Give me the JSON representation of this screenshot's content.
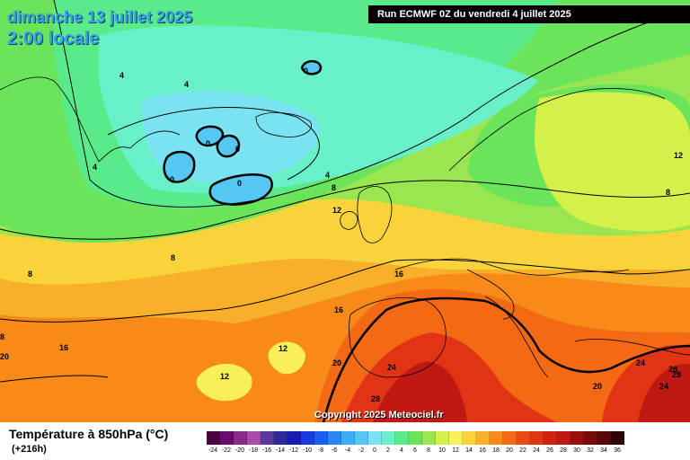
{
  "header": {
    "date": "dimanche 13 juillet 2025",
    "time": "2:00 locale",
    "run": "Run ECMWF 0Z du vendredi 4 juillet 2025"
  },
  "footer": {
    "title": "Température à 850hPa (°C)",
    "lead": "(+216h)",
    "copyright": "Copyright 2025 Meteociel.fr"
  },
  "legend": {
    "labels": [
      "-24",
      "-22",
      "-20",
      "-18",
      "-16",
      "-14",
      "-12",
      "-10",
      "-8",
      "-6",
      "-4",
      "-2",
      "0",
      "2",
      "4",
      "6",
      "8",
      "10",
      "12",
      "14",
      "16",
      "18",
      "20",
      "22",
      "24",
      "26",
      "28",
      "30",
      "32",
      "34",
      "36"
    ],
    "colors": [
      "#4c0040",
      "#6a0a6a",
      "#8a2a8a",
      "#a84ca8",
      "#5a3a9a",
      "#2a2a9a",
      "#1a1ab4",
      "#1a3ae0",
      "#1a5ef0",
      "#2a86f2",
      "#3cacf4",
      "#54c8f2",
      "#7ae2f0",
      "#6af0c8",
      "#5aea8a",
      "#6ae45a",
      "#9ae650",
      "#d6f04a",
      "#f8f05a",
      "#f8d43a",
      "#f8b02a",
      "#f88a1a",
      "#f46a14",
      "#ec4a14",
      "#e03414",
      "#d02212",
      "#c01812",
      "#9c0e0e",
      "#7a0a0a",
      "#580808",
      "#300404"
    ]
  },
  "contours": [
    {
      "name": "label-4-greenland",
      "text": "4"
    },
    {
      "name": "label-4-greenland-b",
      "text": "4"
    },
    {
      "name": "label-4-east-greenland",
      "text": "4"
    },
    {
      "name": "label-0-iceland-n",
      "text": "0"
    },
    {
      "name": "label-0-cell-a",
      "text": "0"
    },
    {
      "name": "label-0-cell-b",
      "text": "0"
    },
    {
      "name": "label-0-cell-c",
      "text": "0"
    },
    {
      "name": "label-0-cell-d",
      "text": "0"
    },
    {
      "name": "label-4-atlantic",
      "text": "4"
    },
    {
      "name": "label-8-atlantic",
      "text": "8"
    },
    {
      "name": "label-12-atlantic",
      "text": "12"
    },
    {
      "name": "label-8-west",
      "text": "8"
    },
    {
      "name": "label-8-south",
      "text": "8"
    },
    {
      "name": "label-16-atlantic",
      "text": "16"
    },
    {
      "name": "label-16-west",
      "text": "16"
    },
    {
      "name": "label-16-southwest",
      "text": "16"
    },
    {
      "name": "label-20-west",
      "text": "20"
    },
    {
      "name": "label-12-azores-a",
      "text": "12"
    },
    {
      "name": "label-12-azores-b",
      "text": "12"
    },
    {
      "name": "label-20-iberia",
      "text": "20"
    },
    {
      "name": "label-24-iberia",
      "text": "24"
    },
    {
      "name": "label-28-iberia",
      "text": "28"
    },
    {
      "name": "label-20-balkans",
      "text": "20"
    },
    {
      "name": "label-24-balkans",
      "text": "24"
    },
    {
      "name": "label-24-turkey",
      "text": "24"
    },
    {
      "name": "label-28-turkey",
      "text": "28"
    },
    {
      "name": "label-28-turkey-b",
      "text": "28"
    },
    {
      "name": "label-8-russia",
      "text": "8"
    },
    {
      "name": "label-12-russia",
      "text": "12"
    },
    {
      "name": "label-8-norway",
      "text": "8"
    }
  ]
}
